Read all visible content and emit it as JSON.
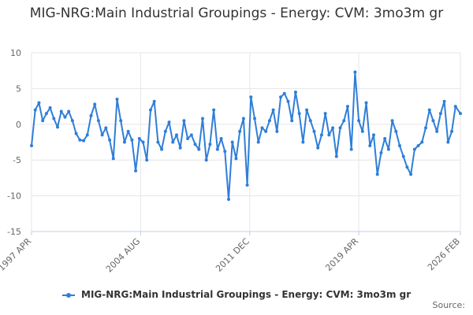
{
  "chart_data": {
    "type": "line",
    "title": "MIG-NRG:Main Industrial Groupings - Energy: CVM: 3mo3m gr",
    "xlabel": "",
    "ylabel": "",
    "ylim": [
      -15,
      10
    ],
    "yticks": [
      10,
      5,
      0,
      -5,
      -10,
      -15
    ],
    "xlim": [
      1997.25,
      2026.08
    ],
    "xticks": [
      {
        "value": 1997.25,
        "label": "1997 APR"
      },
      {
        "value": 2004.58,
        "label": "2004 AUG"
      },
      {
        "value": 2011.92,
        "label": "2011 DEC"
      },
      {
        "value": 2019.25,
        "label": "2019 APR"
      },
      {
        "value": 2026.08,
        "label": "2026 FEB"
      }
    ],
    "grid": true,
    "legend": "bottom-center",
    "series": [
      {
        "name": "MIG-NRG:Main Industrial Groupings - Energy: CVM: 3mo3m gr",
        "color": "#2f7ed8",
        "x": [
          1997.25,
          1997.5,
          1997.75,
          1998,
          1998.25,
          1998.5,
          1998.75,
          1999,
          1999.25,
          1999.5,
          1999.75,
          2000,
          2000.25,
          2000.5,
          2000.75,
          2001,
          2001.25,
          2001.5,
          2001.75,
          2002,
          2002.25,
          2002.5,
          2002.75,
          2003,
          2003.25,
          2003.5,
          2003.75,
          2004,
          2004.25,
          2004.5,
          2004.75,
          2005,
          2005.25,
          2005.5,
          2005.75,
          2006,
          2006.25,
          2006.5,
          2006.75,
          2007,
          2007.25,
          2007.5,
          2007.75,
          2008,
          2008.25,
          2008.5,
          2008.75,
          2009,
          2009.25,
          2009.5,
          2009.75,
          2010,
          2010.25,
          2010.5,
          2010.75,
          2011,
          2011.25,
          2011.5,
          2011.75,
          2012,
          2012.25,
          2012.5,
          2012.75,
          2013,
          2013.25,
          2013.5,
          2013.75,
          2014,
          2014.25,
          2014.5,
          2014.75,
          2015,
          2015.25,
          2015.5,
          2015.75,
          2016,
          2016.25,
          2016.5,
          2016.75,
          2017,
          2017.25,
          2017.5,
          2017.75,
          2018,
          2018.25,
          2018.5,
          2018.75,
          2019,
          2019.25,
          2019.5,
          2019.75,
          2020,
          2020.25,
          2020.5,
          2020.75,
          2021,
          2021.25,
          2021.5,
          2021.75,
          2022,
          2022.25,
          2022.5,
          2022.75,
          2023,
          2023.25,
          2023.5,
          2023.75,
          2024,
          2024.25,
          2024.5,
          2024.75,
          2025,
          2025.25,
          2025.5,
          2025.75,
          2026.08
        ],
        "values": [
          -3.0,
          2.0,
          3.0,
          0.5,
          1.5,
          2.3,
          0.8,
          -0.4,
          1.8,
          1.0,
          1.8,
          0.5,
          -1.3,
          -2.2,
          -2.3,
          -1.5,
          1.2,
          2.8,
          0.5,
          -1.5,
          -0.5,
          -2.2,
          -4.8,
          3.5,
          0.5,
          -2.5,
          -1.0,
          -2.2,
          -6.5,
          -2.0,
          -2.5,
          -5.0,
          2.0,
          3.2,
          -2.5,
          -3.5,
          -1.0,
          0.3,
          -2.5,
          -1.5,
          -3.3,
          0.5,
          -2.0,
          -1.5,
          -2.8,
          -3.5,
          0.8,
          -5.0,
          -2.8,
          2.0,
          -3.5,
          -2.0,
          -3.8,
          -10.5,
          -2.5,
          -4.8,
          -1.0,
          0.8,
          -8.5,
          3.8,
          0.8,
          -2.5,
          -0.5,
          -1.0,
          0.5,
          2.0,
          -1.0,
          3.8,
          4.3,
          3.2,
          0.5,
          4.5,
          1.5,
          -2.5,
          2.0,
          0.5,
          -1.0,
          -3.3,
          -1.5,
          1.5,
          -1.5,
          -0.5,
          -4.5,
          -0.5,
          0.5,
          2.5,
          -3.5,
          7.3,
          0.5,
          -1.0,
          3.0,
          -3.0,
          -1.5,
          -7.0,
          -4.0,
          -2.0,
          -3.5,
          0.5,
          -1.0,
          -3.0,
          -4.5,
          -6.0,
          -7.0,
          -3.5,
          -3.0,
          -2.5,
          -0.5,
          2.0,
          0.5,
          -1.0,
          1.5,
          3.2,
          -2.5,
          -1.0,
          2.5,
          1.5
        ]
      }
    ]
  },
  "credits": "Source:"
}
